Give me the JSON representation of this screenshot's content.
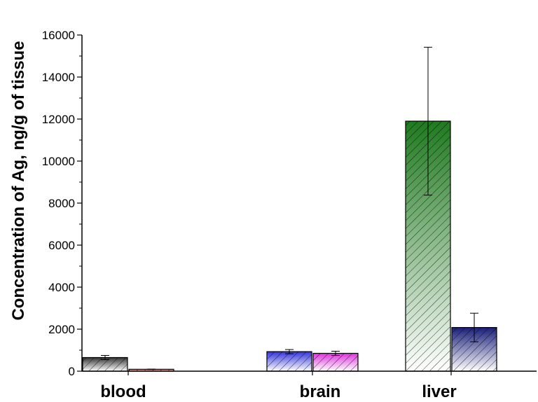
{
  "chart_data": {
    "type": "bar",
    "categories": [
      "blood",
      "brain",
      "liver"
    ],
    "series": [
      {
        "values": [
          650,
          930,
          11900
        ],
        "errors": [
          100,
          100,
          3520
        ],
        "colors": [
          "#333333",
          "#3333dd",
          "#1f7a1f"
        ]
      },
      {
        "values": [
          90,
          850,
          2080
        ],
        "errors": [
          10,
          100,
          680
        ],
        "colors": [
          "#cc5555",
          "#dd33dd",
          "#1a1f7a"
        ]
      }
    ],
    "ylabel": "Concentration of Ag, ng/g of tissue",
    "xlabel": "",
    "ylim": [
      0,
      16000
    ],
    "yticks": [
      "0",
      "2000",
      "4000",
      "6000",
      "8000",
      "10000",
      "12000",
      "14000",
      "16000"
    ],
    "ytick_values": [
      0,
      2000,
      4000,
      6000,
      8000,
      10000,
      12000,
      14000,
      16000
    ],
    "grid": false,
    "legend": "none",
    "bar_style": "diagonal-hatch with gradient fill, solid color at top fading to white at bottom"
  }
}
